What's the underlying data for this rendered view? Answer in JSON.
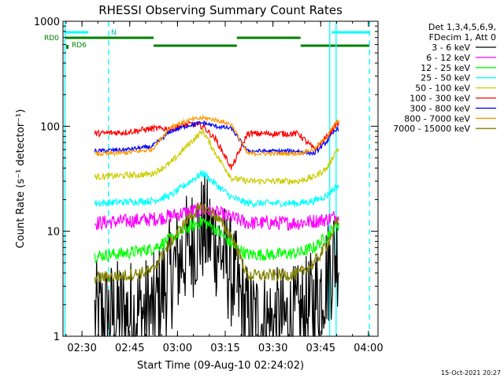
{
  "chart_data": {
    "type": "line",
    "title": "RHESSI Observing Summary Count Rates",
    "xlabel": "Start Time (09-Aug-10 02:24:02)",
    "ylabel": "Count Rate (s⁻¹ detector⁻¹)",
    "yscale": "log",
    "ylim": [
      1,
      1000
    ],
    "xlim": [
      "02:24:02",
      "04:03:00"
    ],
    "x_ticks": [
      "02:30",
      "02:45",
      "03:00",
      "03:15",
      "03:30",
      "03:45",
      "04:00"
    ],
    "y_ticks": [
      "1",
      "10",
      "100",
      "1000"
    ],
    "legend_position": "right",
    "legend_header": [
      "Det 1,3,4,5,6,9,",
      "FDecim 1, Att 0"
    ],
    "footer_date": "15-Oct-2021 20:27",
    "annotations": {
      "N": "N",
      "RD0": "RD0",
      "RD6": "RD6"
    },
    "vertical_lines": [
      {
        "time": "02:24:40",
        "style": "solid",
        "color": "#00ffff"
      },
      {
        "time": "02:38:20",
        "style": "dashed",
        "color": "#00ffff"
      },
      {
        "time": "03:47:50",
        "style": "solid",
        "color": "#00ffff"
      },
      {
        "time": "03:49:50",
        "style": "solid",
        "color": "#00ffff"
      },
      {
        "time": "04:00:20",
        "style": "dashed",
        "color": "#00ffff"
      }
    ],
    "flag_bars": [
      {
        "label": "N",
        "color": "#00ffff",
        "level": "top",
        "segments": [
          [
            "02:24:40",
            "02:32:00"
          ],
          [
            "03:48:30",
            "04:00:20"
          ]
        ]
      },
      {
        "label": "RD0",
        "color": "#008000",
        "level": "upper",
        "segments": [
          [
            "02:24:40",
            "02:52:30"
          ],
          [
            "03:18:40",
            "03:38:40"
          ]
        ]
      },
      {
        "label": "RD6",
        "color": "#008000",
        "level": "lower",
        "segments": [
          [
            "02:52:30",
            "03:18:40"
          ],
          [
            "03:38:40",
            "04:00:20"
          ]
        ]
      }
    ],
    "time_segments": [
      [
        "02:34:00",
        "02:52:30"
      ],
      [
        "02:52:30",
        "03:18:40"
      ],
      [
        "03:18:40",
        "03:38:40"
      ],
      [
        "03:38:40",
        "03:50:40"
      ]
    ],
    "series": [
      {
        "name": "3 - 6 keV",
        "color": "#000000",
        "x": [
          "02:34",
          "02:44",
          "02:52",
          "02:58",
          "03:04",
          "03:08",
          "03:12",
          "03:17",
          "03:22",
          "03:30",
          "03:38",
          "03:43",
          "03:47",
          "03:50"
        ],
        "y": [
          1.5,
          1.6,
          1.7,
          4.0,
          7.5,
          10.5,
          8.0,
          4.0,
          1.4,
          1.3,
          1.4,
          2.0,
          4.0,
          6.5
        ]
      },
      {
        "name": "6 - 12 keV",
        "color": "#ff00ff",
        "x": [
          "02:34",
          "02:44",
          "02:52",
          "02:58",
          "03:04",
          "03:08",
          "03:12",
          "03:17",
          "03:22",
          "03:30",
          "03:38",
          "03:43",
          "03:47",
          "03:50"
        ],
        "y": [
          12,
          12.5,
          13,
          14,
          15.5,
          16,
          15,
          13.5,
          12,
          12,
          12,
          12.5,
          13,
          14
        ]
      },
      {
        "name": "12 - 25 keV",
        "color": "#00ff00",
        "x": [
          "02:34",
          "02:44",
          "02:52",
          "02:58",
          "03:04",
          "03:08",
          "03:12",
          "03:17",
          "03:22",
          "03:30",
          "03:38",
          "03:43",
          "03:47",
          "03:50"
        ],
        "y": [
          5.8,
          6.2,
          6.8,
          8.5,
          11,
          12.5,
          10.5,
          7.5,
          6.0,
          6.0,
          6.2,
          7.0,
          9.0,
          11.5
        ]
      },
      {
        "name": "25 - 50 keV",
        "color": "#00ffff",
        "x": [
          "02:34",
          "02:44",
          "02:52",
          "02:58",
          "03:04",
          "03:08",
          "03:12",
          "03:17",
          "03:22",
          "03:30",
          "03:38",
          "03:43",
          "03:47",
          "03:50"
        ],
        "y": [
          18.5,
          19,
          19.5,
          22,
          30,
          36,
          28,
          21,
          18.5,
          18.5,
          18.5,
          19.5,
          22,
          27
        ]
      },
      {
        "name": "50 - 100 keV",
        "color": "#cccc00",
        "x": [
          "02:34",
          "02:44",
          "02:52",
          "02:58",
          "03:04",
          "03:08",
          "03:12",
          "03:17",
          "03:22",
          "03:30",
          "03:38",
          "03:43",
          "03:47",
          "03:50"
        ],
        "y": [
          33,
          34,
          35,
          45,
          70,
          90,
          55,
          32,
          30,
          30,
          30,
          33,
          40,
          60
        ]
      },
      {
        "name": "100 - 300 keV",
        "color": "#ff0000",
        "x": [
          "02:34",
          "02:44",
          "02:52",
          "02:58",
          "03:04",
          "03:08",
          "03:12",
          "03:17",
          "03:22",
          "03:30",
          "03:38",
          "03:43",
          "03:47",
          "03:50"
        ],
        "y": [
          85,
          88,
          95,
          95,
          105,
          100,
          75,
          40,
          85,
          85,
          85,
          60,
          80,
          105
        ]
      },
      {
        "name": "300 - 800 keV",
        "color": "#0000ff",
        "x": [
          "02:34",
          "02:44",
          "02:52",
          "02:58",
          "03:04",
          "03:08",
          "03:12",
          "03:17",
          "03:22",
          "03:30",
          "03:38",
          "03:43",
          "03:47",
          "03:50"
        ],
        "y": [
          58,
          60,
          64,
          90,
          103,
          108,
          100,
          95,
          58,
          58,
          58,
          55,
          72,
          95
        ]
      },
      {
        "name": "800 - 7000 keV",
        "color": "#ff9900",
        "x": [
          "02:34",
          "02:44",
          "02:52",
          "02:58",
          "03:04",
          "03:08",
          "03:12",
          "03:17",
          "03:22",
          "03:30",
          "03:38",
          "03:43",
          "03:47",
          "03:50"
        ],
        "y": [
          54,
          56,
          60,
          100,
          115,
          120,
          115,
          104,
          55,
          55,
          55,
          60,
          80,
          110
        ]
      },
      {
        "name": "7000 - 15000 keV",
        "color": "#808000",
        "x": [
          "02:34",
          "02:44",
          "02:52",
          "02:58",
          "03:04",
          "03:08",
          "03:12",
          "03:17",
          "03:22",
          "03:30",
          "03:38",
          "03:43",
          "03:47",
          "03:50"
        ],
        "y": [
          3.6,
          3.8,
          4.2,
          8.0,
          14,
          17,
          14,
          9.0,
          3.8,
          3.8,
          3.9,
          5.0,
          7.5,
          12
        ]
      }
    ]
  }
}
